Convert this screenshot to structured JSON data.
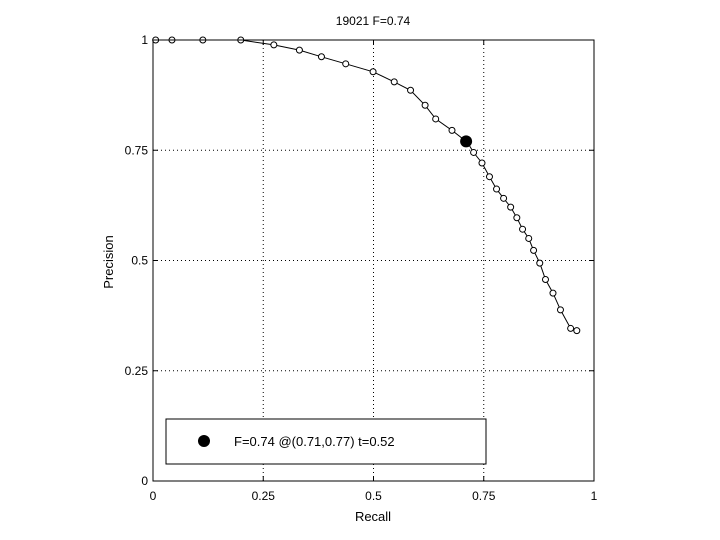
{
  "chart_data": {
    "type": "line",
    "title": "19021 F=0.74",
    "xlabel": "Recall",
    "ylabel": "Precision",
    "xlim": [
      0,
      1
    ],
    "ylim": [
      0,
      1
    ],
    "grid": true,
    "legend_position": "bottom-left",
    "x_ticks": [
      "0",
      "0.25",
      "0.5",
      "0.75",
      "1"
    ],
    "y_ticks": [
      "0",
      "0.25",
      "0.5",
      "0.75",
      "1"
    ],
    "series": [
      {
        "x": [
          0.006,
          0.043,
          0.113,
          0.199,
          0.274,
          0.332,
          0.382,
          0.437,
          0.499,
          0.547,
          0.584,
          0.617,
          0.641,
          0.678,
          0.713,
          0.727,
          0.746,
          0.763,
          0.779,
          0.795,
          0.811,
          0.825,
          0.838,
          0.852,
          0.863,
          0.877,
          0.89,
          0.907,
          0.924,
          0.947,
          0.961
        ],
        "y": [
          1.0,
          1.0,
          1.0,
          1.0,
          0.989,
          0.977,
          0.962,
          0.946,
          0.928,
          0.905,
          0.886,
          0.852,
          0.821,
          0.795,
          0.768,
          0.745,
          0.721,
          0.69,
          0.662,
          0.641,
          0.621,
          0.597,
          0.571,
          0.55,
          0.523,
          0.494,
          0.457,
          0.426,
          0.388,
          0.346,
          0.341
        ]
      }
    ],
    "highlight": {
      "x": 0.71,
      "y": 0.77,
      "label": "F=0.74 @(0.71,0.77) t=0.52"
    }
  }
}
